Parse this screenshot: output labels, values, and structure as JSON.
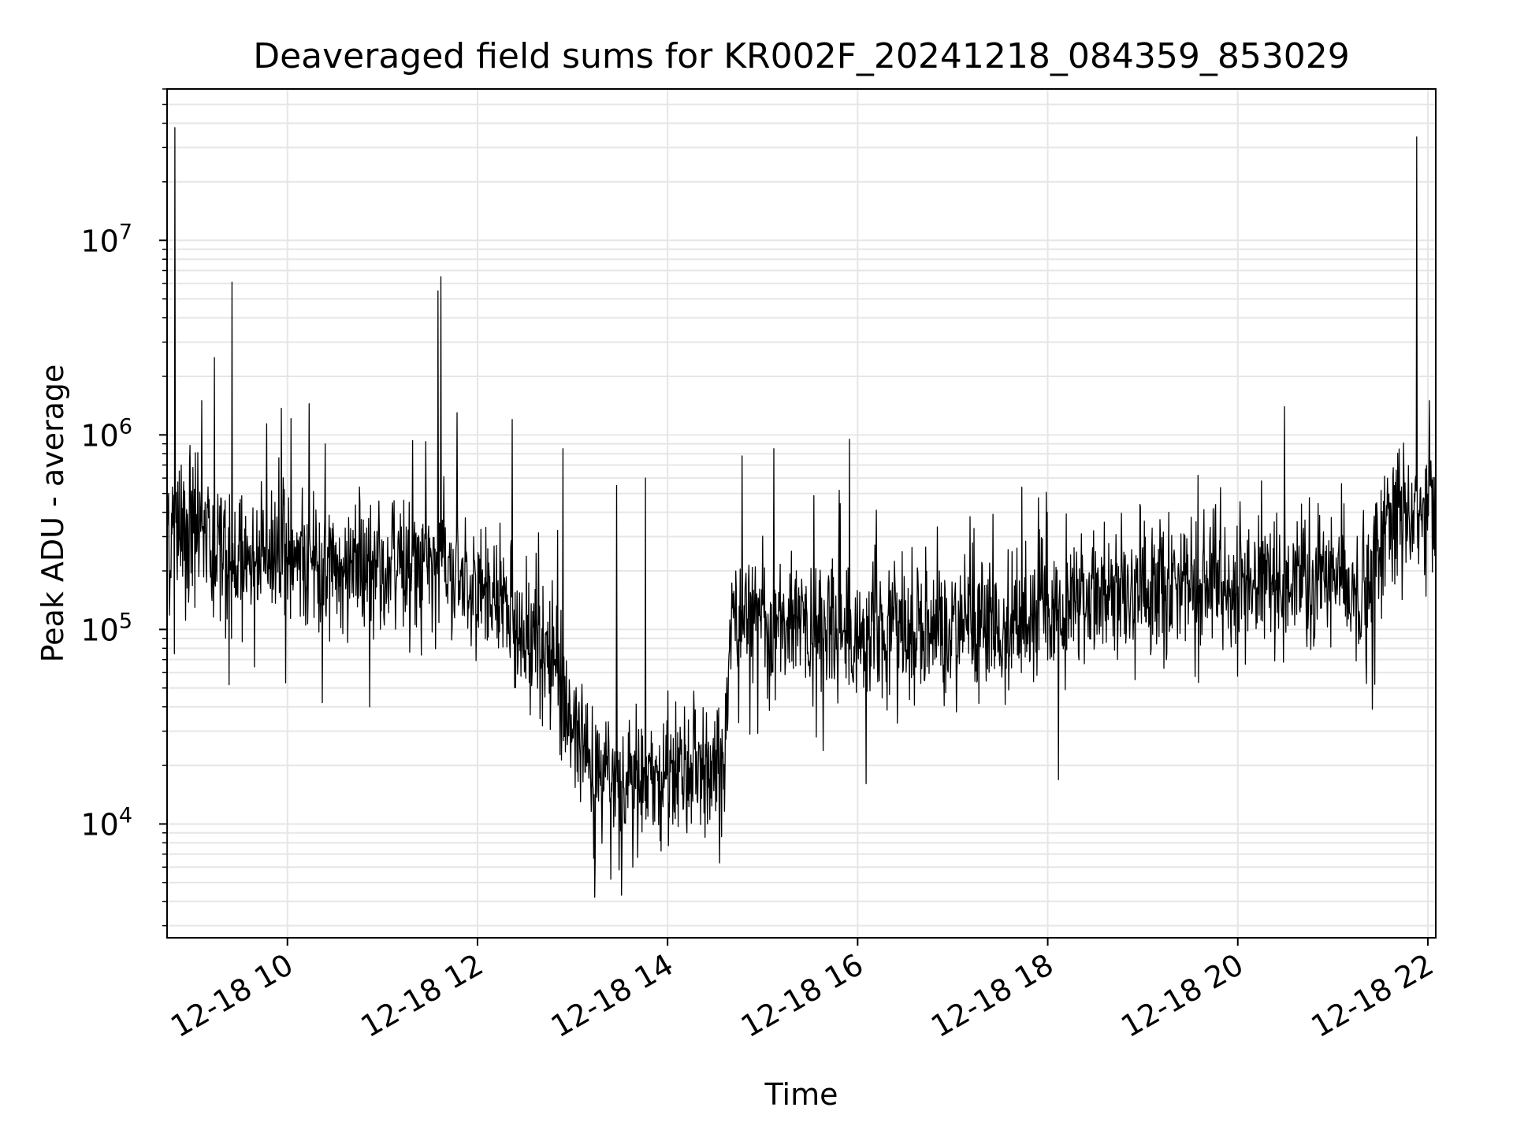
{
  "chart_data": {
    "type": "line",
    "title": "Deaveraged field sums for KR002F_20241218_084359_853029",
    "xlabel": "Time",
    "ylabel": "Peak ADU - average",
    "yscale": "log",
    "ylim": [
      2600,
      60000000
    ],
    "xlim": [
      "2024-12-18T08:44",
      "2024-12-18T22:05"
    ],
    "grid": true,
    "line_color": "#000000",
    "grid_color": "#e6e6e6",
    "x_ticks": [
      {
        "value": "2024-12-18T10:00",
        "label": "12-18 10"
      },
      {
        "value": "2024-12-18T12:00",
        "label": "12-18 12"
      },
      {
        "value": "2024-12-18T14:00",
        "label": "12-18 14"
      },
      {
        "value": "2024-12-18T16:00",
        "label": "12-18 16"
      },
      {
        "value": "2024-12-18T18:00",
        "label": "12-18 18"
      },
      {
        "value": "2024-12-18T20:00",
        "label": "12-18 20"
      },
      {
        "value": "2024-12-18T22:00",
        "label": "12-18 22"
      }
    ],
    "y_ticks": [
      {
        "value": 10000,
        "base": "10",
        "exp": "4"
      },
      {
        "value": 100000,
        "base": "10",
        "exp": "5"
      },
      {
        "value": 1000000,
        "base": "10",
        "exp": "6"
      },
      {
        "value": 10000000,
        "base": "10",
        "exp": "7"
      }
    ],
    "series": [
      {
        "trend": [
          [
            "2024-12-18T08:44",
            350000
          ],
          [
            "2024-12-18T09:00",
            320000
          ],
          [
            "2024-12-18T09:15",
            240000
          ],
          [
            "2024-12-18T10:00",
            220000
          ],
          [
            "2024-12-18T11:00",
            215000
          ],
          [
            "2024-12-18T11:45",
            200000
          ],
          [
            "2024-12-18T12:15",
            150000
          ],
          [
            "2024-12-18T12:30",
            100000
          ],
          [
            "2024-12-18T12:50",
            55000
          ],
          [
            "2024-12-18T13:10",
            20000
          ],
          [
            "2024-12-18T13:30",
            15000
          ],
          [
            "2024-12-18T14:00",
            18000
          ],
          [
            "2024-12-18T14:30",
            20000
          ],
          [
            "2024-12-18T14:36",
            25000
          ],
          [
            "2024-12-18T14:40",
            110000
          ],
          [
            "2024-12-18T15:30",
            100000
          ],
          [
            "2024-12-18T16:00",
            95000
          ],
          [
            "2024-12-18T16:45",
            110000
          ],
          [
            "2024-12-18T17:30",
            100000
          ],
          [
            "2024-12-18T18:00",
            120000
          ],
          [
            "2024-12-18T18:30",
            160000
          ],
          [
            "2024-12-18T19:30",
            170000
          ],
          [
            "2024-12-18T20:30",
            175000
          ],
          [
            "2024-12-18T21:25",
            180000
          ],
          [
            "2024-12-18T21:30",
            300000
          ],
          [
            "2024-12-18T22:05",
            400000
          ]
        ],
        "spikes": [
          [
            "2024-12-18T08:49",
            38000000
          ],
          [
            "2024-12-18T09:14",
            2500000
          ],
          [
            "2024-12-18T09:06",
            1500000
          ],
          [
            "2024-12-18T09:25",
            6100000
          ],
          [
            "2024-12-18T11:35",
            5500000
          ],
          [
            "2024-12-18T11:37",
            6500000
          ],
          [
            "2024-12-18T11:47",
            1300000
          ],
          [
            "2024-12-18T12:22",
            1200000
          ],
          [
            "2024-12-18T12:54",
            850000
          ],
          [
            "2024-12-18T13:46",
            600000
          ],
          [
            "2024-12-18T13:28",
            550000
          ],
          [
            "2024-12-18T15:07",
            850000
          ],
          [
            "2024-12-18T15:55",
            950000
          ],
          [
            "2024-12-18T14:47",
            780000
          ],
          [
            "2024-12-18T17:11",
            380000
          ],
          [
            "2024-12-18T19:35",
            620000
          ],
          [
            "2024-12-18T20:15",
            580000
          ],
          [
            "2024-12-18T21:53",
            34000000
          ],
          [
            "2024-12-18T22:01",
            1500000
          ]
        ],
        "dips": [
          [
            "2024-12-18T09:23",
            52000
          ],
          [
            "2024-12-18T10:22",
            42000
          ],
          [
            "2024-12-18T10:52",
            40000
          ],
          [
            "2024-12-18T13:05",
            13000
          ],
          [
            "2024-12-18T13:14",
            4200
          ],
          [
            "2024-12-18T13:24",
            5200
          ],
          [
            "2024-12-18T13:31",
            4300
          ],
          [
            "2024-12-18T13:38",
            6000
          ],
          [
            "2024-12-18T14:34",
            8600
          ],
          [
            "2024-12-18T15:34",
            28000
          ],
          [
            "2024-12-18T16:25",
            33000
          ]
        ]
      }
    ]
  }
}
